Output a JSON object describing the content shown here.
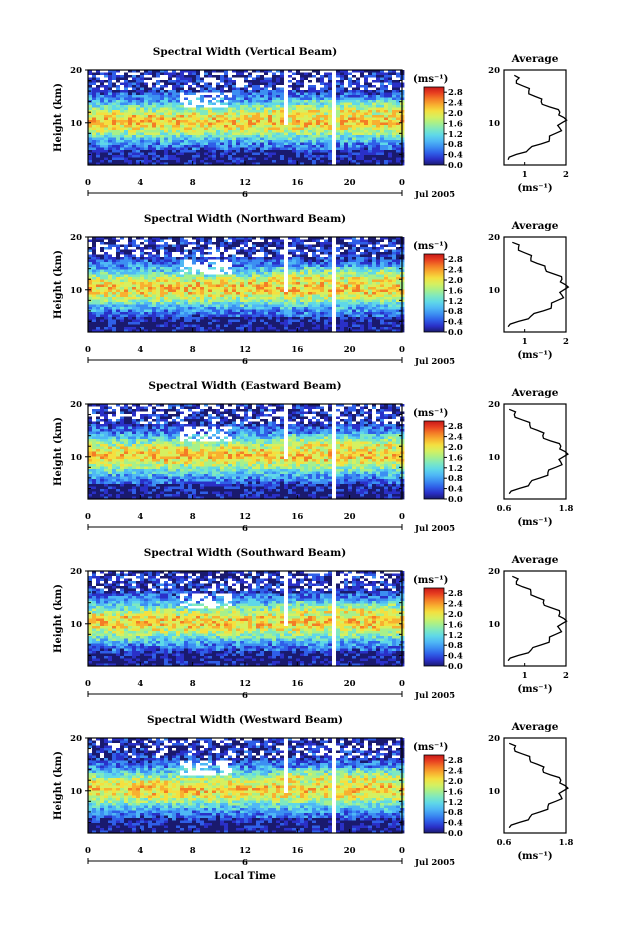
{
  "figure": {
    "xlabel": "Local Time",
    "date_label": "Jul 2005",
    "day_label": "6",
    "cbar_unit": "(ms⁻¹)",
    "avg_title": "Average",
    "avg_unit": "(ms⁻¹)"
  },
  "colors": {
    "colormap": [
      "#1a1a6e",
      "#2a30c8",
      "#2f5fe8",
      "#3c8ff2",
      "#4fb8f5",
      "#5fd8e8",
      "#7ee8c0",
      "#a8f08a",
      "#d6f060",
      "#f4e040",
      "#f8b030",
      "#f47c26",
      "#e84020",
      "#c81818"
    ],
    "gap": "#ffffff"
  },
  "chart_data": [
    {
      "type": "heatmap",
      "title": "Spectral Width (Vertical Beam)",
      "xlabel": "",
      "ylabel": "Height (km)",
      "x_ticks": [
        "0",
        "4",
        "8",
        "12",
        "16",
        "20",
        "0"
      ],
      "xlim": [
        0,
        24
      ],
      "ylim": [
        2,
        20
      ],
      "y_ticks": [
        "20",
        "10"
      ],
      "colorbar": {
        "ticks": [
          "2.8",
          "2.4",
          "2.0",
          "1.6",
          "1.2",
          "0.8",
          "0.4",
          "0.0"
        ],
        "range": [
          0,
          3.0
        ]
      },
      "average_profile": {
        "title": "Average",
        "x_ticks": [
          "1",
          "2"
        ],
        "xlim": [
          0.5,
          2.0
        ],
        "height_km": [
          3,
          4,
          5,
          6,
          7,
          8,
          9,
          10,
          11,
          12,
          13,
          14,
          15,
          16,
          17,
          18,
          19
        ],
        "width_ms": [
          0.6,
          0.8,
          1.1,
          1.4,
          1.6,
          1.75,
          1.85,
          1.9,
          1.95,
          1.85,
          1.6,
          1.4,
          1.25,
          1.1,
          0.95,
          0.8,
          0.75
        ]
      }
    },
    {
      "type": "heatmap",
      "title": "Spectral Width (Northward Beam)",
      "xlabel": "",
      "ylabel": "Height (km)",
      "x_ticks": [
        "0",
        "4",
        "8",
        "12",
        "16",
        "20",
        "0"
      ],
      "xlim": [
        0,
        24
      ],
      "ylim": [
        2,
        20
      ],
      "y_ticks": [
        "20",
        "10"
      ],
      "colorbar": {
        "ticks": [
          "2.8",
          "2.4",
          "2.0",
          "1.6",
          "1.2",
          "0.8",
          "0.4",
          "0.0"
        ],
        "range": [
          0,
          3.0
        ]
      },
      "average_profile": {
        "title": "Average",
        "x_ticks": [
          "1",
          "2"
        ],
        "xlim": [
          0.5,
          2.0
        ],
        "height_km": [
          3,
          4,
          5,
          6,
          7,
          8,
          9,
          10,
          11,
          12,
          13,
          14,
          15,
          16,
          17,
          18,
          19
        ],
        "width_ms": [
          0.6,
          0.85,
          1.15,
          1.45,
          1.65,
          1.8,
          1.9,
          1.95,
          1.98,
          1.9,
          1.7,
          1.5,
          1.3,
          1.15,
          1.0,
          0.85,
          0.7
        ]
      }
    },
    {
      "type": "heatmap",
      "title": "Spectral Width (Eastward Beam)",
      "xlabel": "",
      "ylabel": "Height (km)",
      "x_ticks": [
        "0",
        "4",
        "8",
        "12",
        "16",
        "20",
        "0"
      ],
      "xlim": [
        0,
        24
      ],
      "ylim": [
        2,
        20
      ],
      "y_ticks": [
        "20",
        "10"
      ],
      "colorbar": {
        "ticks": [
          "2.8",
          "2.4",
          "2.0",
          "1.6",
          "1.2",
          "0.8",
          "0.4",
          "0.0"
        ],
        "range": [
          0,
          3.0
        ]
      },
      "average_profile": {
        "title": "Average",
        "x_ticks": [
          "0.6",
          "1.8"
        ],
        "xlim": [
          0.6,
          1.8
        ],
        "height_km": [
          3,
          4,
          5,
          6,
          7,
          8,
          9,
          10,
          11,
          12,
          13,
          14,
          15,
          16,
          17,
          18,
          19
        ],
        "width_ms": [
          0.7,
          0.9,
          1.1,
          1.3,
          1.45,
          1.6,
          1.7,
          1.75,
          1.78,
          1.7,
          1.5,
          1.35,
          1.25,
          1.1,
          0.95,
          0.8,
          0.7
        ]
      }
    },
    {
      "type": "heatmap",
      "title": "Spectral Width (Southward Beam)",
      "xlabel": "",
      "ylabel": "Height (km)",
      "x_ticks": [
        "0",
        "4",
        "8",
        "12",
        "16",
        "20",
        "0"
      ],
      "xlim": [
        0,
        24
      ],
      "ylim": [
        2,
        20
      ],
      "y_ticks": [
        "20",
        "10"
      ],
      "colorbar": {
        "ticks": [
          "2.8",
          "2.4",
          "2.0",
          "1.6",
          "1.2",
          "0.8",
          "0.4",
          "0.0"
        ],
        "range": [
          0,
          3.0
        ]
      },
      "average_profile": {
        "title": "Average",
        "x_ticks": [
          "1",
          "2"
        ],
        "xlim": [
          0.5,
          2.0
        ],
        "height_km": [
          3,
          4,
          5,
          6,
          7,
          8,
          9,
          10,
          11,
          12,
          13,
          14,
          15,
          16,
          17,
          18,
          19
        ],
        "width_ms": [
          0.6,
          0.85,
          1.15,
          1.4,
          1.6,
          1.75,
          1.85,
          1.9,
          1.95,
          1.85,
          1.65,
          1.45,
          1.3,
          1.15,
          0.95,
          0.8,
          0.7
        ]
      }
    },
    {
      "type": "heatmap",
      "title": "Spectral Width (Westward Beam)",
      "xlabel": "Local Time",
      "ylabel": "Height (km)",
      "x_ticks": [
        "0",
        "4",
        "8",
        "12",
        "16",
        "20",
        "0"
      ],
      "xlim": [
        0,
        24
      ],
      "ylim": [
        2,
        20
      ],
      "y_ticks": [
        "20",
        "10"
      ],
      "colorbar": {
        "ticks": [
          "2.8",
          "2.4",
          "2.0",
          "1.6",
          "1.2",
          "0.8",
          "0.4",
          "0.0"
        ],
        "range": [
          0,
          3.0
        ]
      },
      "average_profile": {
        "title": "Average",
        "x_ticks": [
          "0.6",
          "1.8"
        ],
        "xlim": [
          0.6,
          1.8
        ],
        "height_km": [
          3,
          4,
          5,
          6,
          7,
          8,
          9,
          10,
          11,
          12,
          13,
          14,
          15,
          16,
          17,
          18,
          19
        ],
        "width_ms": [
          0.7,
          0.9,
          1.1,
          1.3,
          1.45,
          1.6,
          1.7,
          1.75,
          1.78,
          1.7,
          1.5,
          1.35,
          1.25,
          1.1,
          0.95,
          0.8,
          0.7
        ]
      }
    }
  ]
}
